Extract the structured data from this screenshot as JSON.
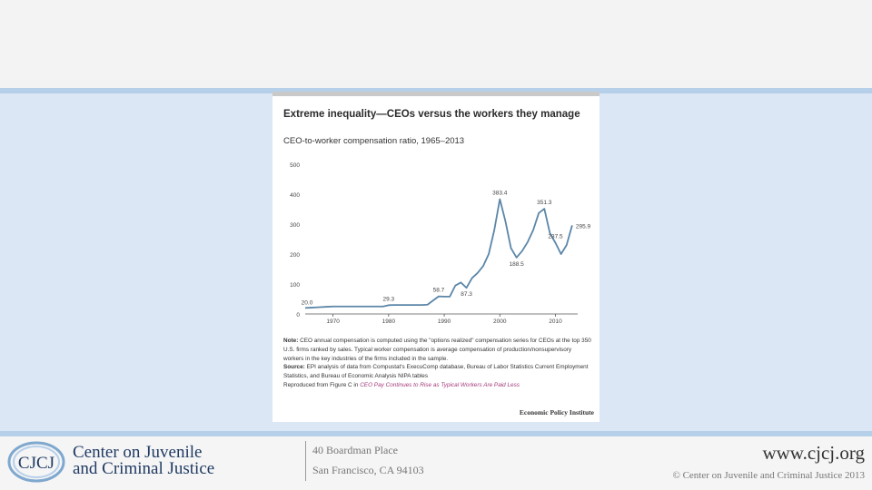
{
  "footer": {
    "org_name_line1": "Center on Juvenile",
    "org_name_line2": "and Criminal Justice",
    "logo_text": "CJCJ",
    "address_line1": "40 Boardman Place",
    "address_line2": "San Francisco, CA 94103",
    "url": "www.cjcj.org",
    "copyright": "© Center on Juvenile and Criminal Justice 2013"
  },
  "colors": {
    "line": "#5b86a8",
    "content_bg": "#dbe7f5",
    "rule": "#b7d0ea",
    "link": "#a33a7b"
  },
  "chart_data": {
    "type": "line",
    "title": "Extreme inequality—CEOs versus the workers they manage",
    "subtitle": "CEO-to-worker compensation ratio, 1965–2013",
    "xlabel": "",
    "ylabel": "",
    "x_ticks": [
      "1970",
      "1980",
      "1990",
      "2000",
      "2010"
    ],
    "y_ticks": [
      "0",
      "100",
      "200",
      "300",
      "400",
      "500"
    ],
    "xlim": [
      1965,
      2014
    ],
    "ylim": [
      0,
      500
    ],
    "grid": false,
    "series": [
      {
        "x": [
          1965,
          1966,
          1967,
          1968,
          1969,
          1970,
          1971,
          1972,
          1973,
          1974,
          1975,
          1976,
          1977,
          1978,
          1979,
          1980,
          1981,
          1982,
          1983,
          1984,
          1985,
          1986,
          1987,
          1988,
          1989,
          1990,
          1991,
          1992,
          1993,
          1994,
          1995,
          1996,
          1997,
          1998,
          1999,
          2000,
          2001,
          2002,
          2003,
          2004,
          2005,
          2006,
          2007,
          2008,
          2009,
          2010,
          2011,
          2012,
          2013
        ],
        "y": [
          20,
          21,
          22,
          23,
          24,
          25,
          25,
          25,
          25,
          25,
          25,
          25,
          25,
          25,
          25,
          29.3,
          30,
          30,
          30,
          30,
          30,
          30,
          31,
          45,
          58.7,
          58,
          58,
          95,
          105,
          87.3,
          120,
          137,
          160,
          200,
          280,
          383.4,
          310,
          220,
          188.5,
          210,
          240,
          280,
          337,
          351.3,
          270,
          237.5,
          200,
          230,
          295.9
        ]
      }
    ],
    "annotations": [
      {
        "text": "20.0",
        "x": 1965,
        "y": 20
      },
      {
        "text": "29.3",
        "x": 1980,
        "y": 29.3
      },
      {
        "text": "58.7",
        "x": 1989,
        "y": 58.7
      },
      {
        "text": "87.3",
        "x": 1994,
        "y": 87.3
      },
      {
        "text": "383.4",
        "x": 2000,
        "y": 383.4
      },
      {
        "text": "188.5",
        "x": 2003,
        "y": 188.5
      },
      {
        "text": "351.3",
        "x": 2008,
        "y": 351.3
      },
      {
        "text": "237.5",
        "x": 2010,
        "y": 237.5
      },
      {
        "text": "295.9",
        "x": 2013,
        "y": 295.9
      }
    ],
    "note_label": "Note:",
    "note_text": "CEO annual compensation is computed using the \"options realized\" compensation series for CEOs at the top 350 U.S. firms ranked by sales. Typical worker compensation is average compensation of production/nonsupervisory workers in the key industries of the firms included in the sample.",
    "source_label": "Source:",
    "source_text": "EPI analysis of data from Compustat's ExecuComp database, Bureau of Labor Statistics Current Employment Statistics, and Bureau of Economic Analysis NIPA tables",
    "reproduced_text": "Reproduced from Figure C in",
    "reproduced_link": "CEO Pay Continues to Rise as Typical Workers Are Paid Less",
    "credit": "Economic Policy Institute"
  }
}
